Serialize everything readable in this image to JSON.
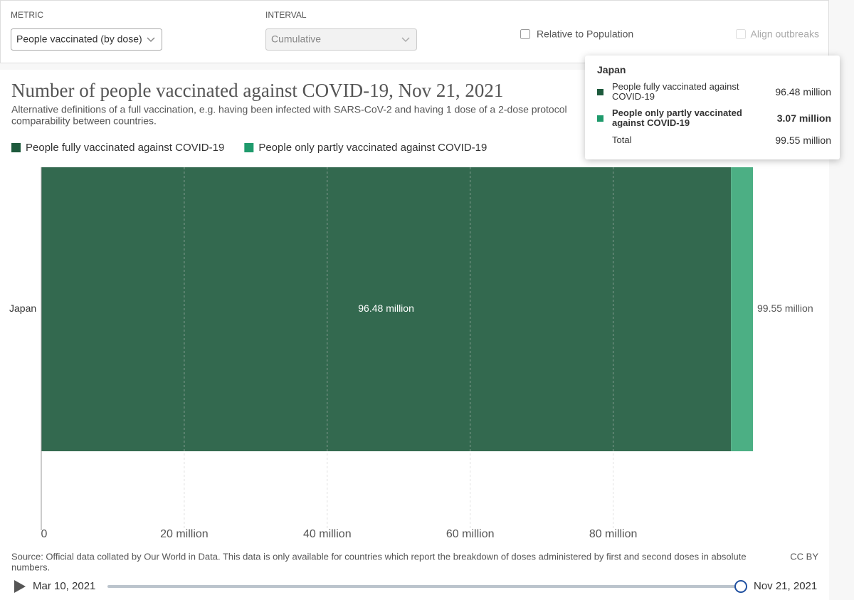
{
  "controls": {
    "metric": {
      "label": "METRIC",
      "value": "People vaccinated (by dose)"
    },
    "interval": {
      "label": "INTERVAL",
      "value": "Cumulative"
    },
    "relative": "Relative to Population",
    "align": "Align outbreaks"
  },
  "chart_data": {
    "type": "bar",
    "orientation": "horizontal",
    "stacked": true,
    "title": "Number of people vaccinated against COVID-19, Nov 21, 2021",
    "subtitle_lines": [
      "Alternative definitions of a full vaccination, e.g. having been infected with SARS-CoV-2 and having 1 dose of a 2-dose protocol",
      "comparability between countries."
    ],
    "categories": [
      "Japan"
    ],
    "series": [
      {
        "name": "People fully vaccinated against COVID-19",
        "color": "#33694f",
        "legend_color": "#1d5a3c",
        "values": [
          96480000
        ],
        "value_labels": [
          "96.48 million"
        ]
      },
      {
        "name": "People only partly vaccinated against COVID-19",
        "color": "#4caf84",
        "legend_color": "#1f9a6c",
        "values": [
          3070000
        ],
        "value_labels": [
          "3.07 million"
        ]
      }
    ],
    "totals": [
      99550000
    ],
    "total_labels": [
      "99.55 million"
    ],
    "xlim": [
      0,
      99550000
    ],
    "xticks": [
      0,
      {
        "value": 20000000,
        "label": "20 million"
      },
      {
        "value": 40000000,
        "label": "40 million"
      },
      {
        "value": 60000000,
        "label": "60 million"
      },
      {
        "value": 80000000,
        "label": "80 million"
      }
    ],
    "grid": true,
    "source": [
      "Source: Official data collated by Our World in Data. This data is only available for countries which report the breakdown of doses administered by first and second doses in absolute",
      "numbers."
    ],
    "license": "CC BY"
  },
  "tooltip": {
    "title": "Japan",
    "total": "Total"
  },
  "timeline": {
    "start": "Mar 10, 2021",
    "end": "Nov 21, 2021"
  }
}
